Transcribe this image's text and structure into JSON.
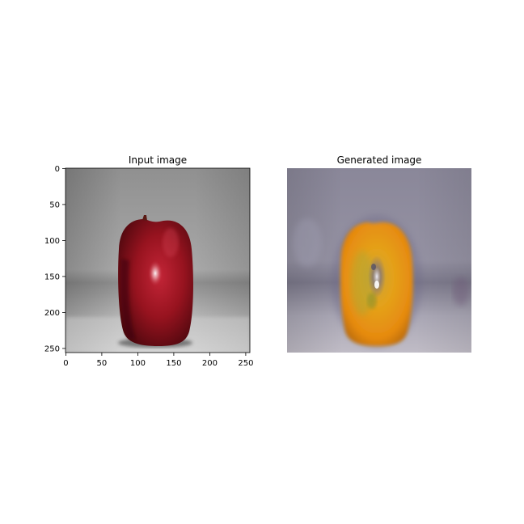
{
  "panels": [
    {
      "title": "Input image",
      "description": "red apple on a grey backdrop",
      "x_ticks": [
        "0",
        "50",
        "100",
        "150",
        "200",
        "250"
      ],
      "y_ticks": [
        "0",
        "50",
        "100",
        "150",
        "200",
        "250"
      ]
    },
    {
      "title": "Generated image",
      "description": "orange-coloured translated apple on a lavender-grey backdrop"
    }
  ]
}
